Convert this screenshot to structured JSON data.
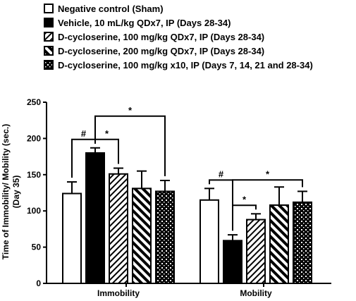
{
  "chart_data": {
    "type": "bar",
    "categories": [
      "Immobility",
      "Mobility"
    ],
    "ylabel": "Time of Immobility/ Mobility (sec.)",
    "ylabel2": "(Day 35)",
    "ylim": [
      0,
      250
    ],
    "yticks": [
      0,
      50,
      100,
      150,
      200,
      250
    ],
    "legend_position": "top-left",
    "series": [
      {
        "name": "Negative control (Sham)",
        "pattern": "white",
        "values": [
          124,
          115
        ],
        "errors": [
          16,
          16
        ]
      },
      {
        "name": "Vehicle, 10 mL/kg QDx7, IP (Days 28-34)",
        "pattern": "black",
        "values": [
          180,
          59
        ],
        "errors": [
          7,
          8
        ]
      },
      {
        "name": "D-cycloserine, 100 mg/kg QDx7, IP (Days 28-34)",
        "pattern": "diagonal-thin",
        "values": [
          151,
          88
        ],
        "errors": [
          8,
          8
        ]
      },
      {
        "name": "D-cycloserine, 200 mg/kg QDx7, IP (Days 28-34)",
        "pattern": "diagonal-thick",
        "values": [
          131,
          108
        ],
        "errors": [
          24,
          25
        ]
      },
      {
        "name": "D-cycloserine, 100 mg/kg x10, IP (Days 7, 14, 21 and 28-34)",
        "pattern": "checker",
        "values": [
          127,
          112
        ],
        "errors": [
          15,
          15
        ]
      }
    ],
    "significance": [
      {
        "group": 0,
        "from": 0,
        "to": 1,
        "label": "#"
      },
      {
        "group": 0,
        "from": 1,
        "to": 2,
        "label": "*"
      },
      {
        "group": 0,
        "from": 1,
        "to": 4,
        "label": "*"
      },
      {
        "group": 1,
        "from": 0,
        "to": 1,
        "label": "#"
      },
      {
        "group": 1,
        "from": 1,
        "to": 2,
        "label": "*"
      },
      {
        "group": 1,
        "from": 1,
        "to": 4,
        "label": "*"
      }
    ]
  }
}
